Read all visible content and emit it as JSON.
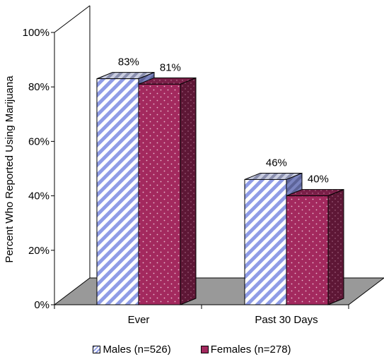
{
  "chart_data": {
    "type": "bar",
    "categories": [
      "Ever",
      "Past 30 Days"
    ],
    "series": [
      {
        "name": "Males (n=526)",
        "values": [
          83,
          46
        ],
        "color": "#8f9ce6",
        "pattern": "diagonal-stripes"
      },
      {
        "name": "Females (n=278)",
        "values": [
          81,
          40
        ],
        "color": "#a3295e",
        "pattern": "dots"
      }
    ],
    "value_labels": [
      [
        "83%",
        "46%"
      ],
      [
        "81%",
        "40%"
      ]
    ],
    "title": "",
    "xlabel": "",
    "ylabel": "Percent Who Reported Using Marijuana",
    "ylim": [
      0,
      100
    ],
    "yticks": [
      "0%",
      "20%",
      "40%",
      "60%",
      "80%",
      "100%"
    ],
    "grid": false,
    "legend_position": "bottom",
    "three_d": true,
    "floor_color": "#999999"
  }
}
